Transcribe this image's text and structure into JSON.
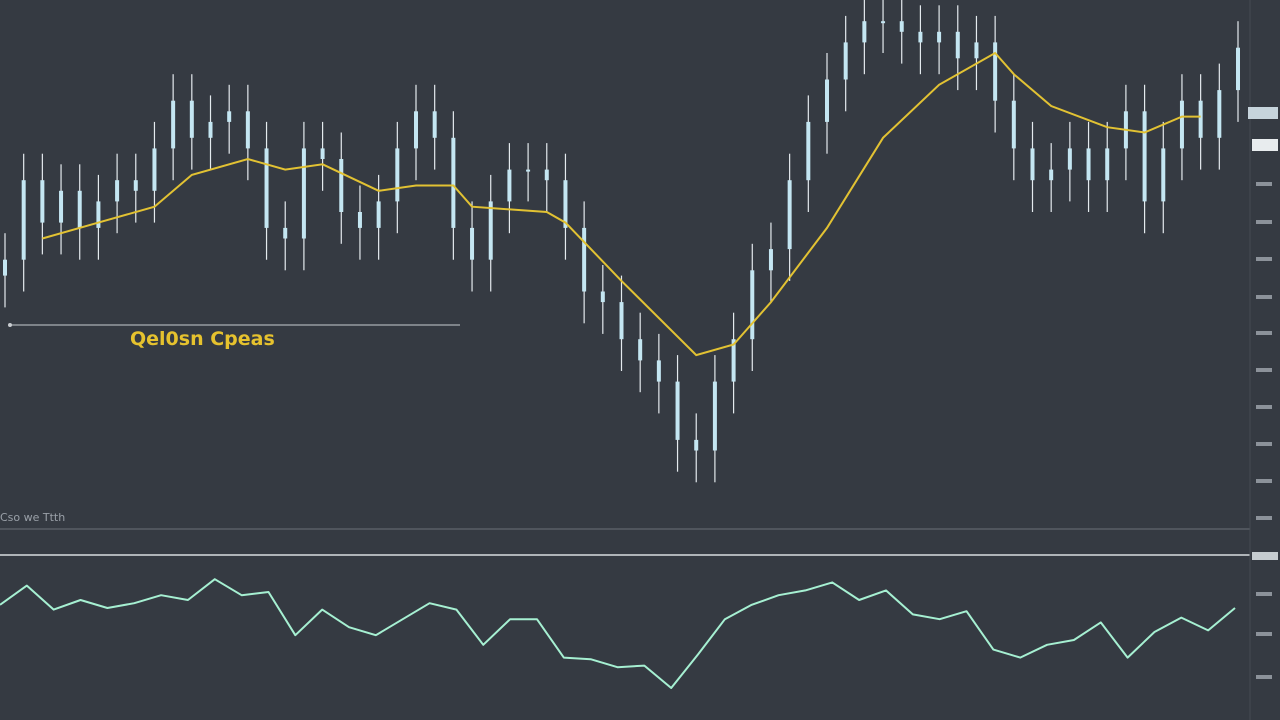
{
  "chart_data": [
    {
      "type": "candlestick",
      "open": [
        48,
        51,
        66,
        58,
        64,
        57,
        62,
        66,
        64,
        72,
        81,
        74,
        77,
        79,
        72,
        57,
        55,
        72,
        70,
        60,
        57,
        62,
        72,
        79,
        74,
        57,
        51,
        62,
        68,
        68,
        66,
        57,
        45,
        43,
        36,
        32,
        28,
        17,
        15,
        28,
        36,
        49,
        53,
        66,
        77,
        85,
        92,
        96,
        96,
        94,
        92,
        94,
        89,
        92,
        81,
        72,
        66,
        68,
        72,
        66,
        72,
        79,
        62,
        72,
        81,
        74,
        83
      ],
      "high": [
        56,
        71,
        71,
        69,
        69,
        67,
        71,
        71,
        77,
        86,
        86,
        82,
        84,
        84,
        77,
        62,
        77,
        77,
        75,
        65,
        67,
        77,
        84,
        84,
        79,
        62,
        67,
        73,
        73,
        73,
        71,
        62,
        50,
        48,
        41,
        37,
        33,
        22,
        33,
        41,
        54,
        58,
        71,
        82,
        90,
        97,
        100,
        100,
        100,
        99,
        99,
        99,
        97,
        97,
        86,
        77,
        73,
        77,
        77,
        77,
        84,
        84,
        77,
        86,
        86,
        88,
        96
      ],
      "low": [
        42,
        45,
        52,
        52,
        51,
        51,
        56,
        58,
        58,
        66,
        68,
        68,
        71,
        66,
        51,
        49,
        49,
        64,
        54,
        51,
        51,
        56,
        66,
        68,
        51,
        45,
        45,
        56,
        62,
        60,
        51,
        39,
        37,
        30,
        26,
        22,
        11,
        9,
        9,
        22,
        30,
        43,
        47,
        60,
        71,
        79,
        86,
        90,
        88,
        86,
        86,
        83,
        83,
        75,
        66,
        60,
        60,
        62,
        60,
        60,
        66,
        56,
        56,
        66,
        68,
        68,
        77
      ],
      "close": [
        51,
        66,
        58,
        64,
        57,
        62,
        66,
        64,
        72,
        81,
        74,
        77,
        79,
        72,
        57,
        55,
        72,
        70,
        60,
        57,
        62,
        72,
        79,
        74,
        57,
        51,
        62,
        68,
        68,
        66,
        57,
        45,
        43,
        36,
        32,
        28,
        17,
        15,
        28,
        36,
        49,
        53,
        66,
        77,
        85,
        92,
        96,
        96,
        94,
        92,
        94,
        89,
        92,
        81,
        72,
        66,
        68,
        72,
        66,
        72,
        79,
        62,
        72,
        81,
        74,
        83,
        91
      ],
      "body_color": "#c4e6f2",
      "wick_color": "#e4eaee",
      "ylim": [
        0,
        100
      ],
      "moving_average": {
        "color": "#e2c233",
        "x": [
          2,
          5,
          8,
          10,
          13,
          15,
          17,
          20,
          22,
          24,
          25,
          29,
          30,
          33,
          37,
          39,
          41,
          44,
          47,
          50,
          53,
          54,
          56,
          59,
          61,
          63,
          64
        ],
        "values": [
          55,
          58,
          61,
          67,
          70,
          68,
          69,
          64,
          65,
          65,
          61,
          60,
          58,
          47,
          33,
          35,
          43,
          57,
          74,
          84,
          90,
          86,
          80,
          76,
          75,
          78,
          78
        ]
      },
      "annotation": "Qel0sn Cpeas",
      "footnote": "Cso we Ttth"
    },
    {
      "type": "line",
      "color": "#a6f0d2",
      "ylim": [
        0,
        100
      ],
      "values": [
        72,
        84,
        69,
        75,
        70,
        73,
        78,
        75,
        88,
        78,
        80,
        53,
        69,
        58,
        53,
        63,
        73,
        69,
        47,
        63,
        63,
        39,
        38,
        33,
        34,
        20,
        41,
        63,
        72,
        78,
        81,
        86,
        75,
        81,
        66,
        63,
        68,
        44,
        39,
        47,
        50,
        61,
        39,
        55,
        64,
        56,
        70
      ]
    }
  ]
}
